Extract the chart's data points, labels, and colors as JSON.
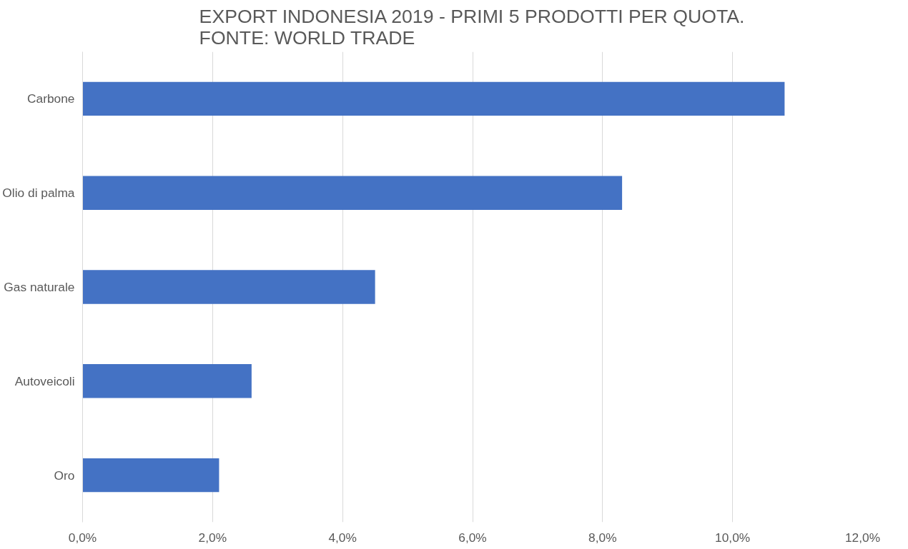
{
  "chart_data": {
    "type": "bar",
    "orientation": "horizontal",
    "title": "EXPORT INDONESIA 2019 - PRIMI 5 PRODOTTI PER QUOTA.\nFONTE: WORLD TRADE",
    "categories": [
      "Carbone",
      "Olio di palma",
      "Gas naturale",
      "Autoveicoli",
      "Oro"
    ],
    "values": [
      10.8,
      8.3,
      4.5,
      2.6,
      2.1
    ],
    "color": "#4472c4",
    "xlim": [
      0,
      12
    ],
    "xticks": [
      {
        "value": 0,
        "label": "0,0%"
      },
      {
        "value": 2,
        "label": "2,0%"
      },
      {
        "value": 4,
        "label": "4,0%"
      },
      {
        "value": 6,
        "label": "6,0%"
      },
      {
        "value": 8,
        "label": "8,0%"
      },
      {
        "value": 10,
        "label": "10,0%"
      },
      {
        "value": 12,
        "label": "12,0%"
      }
    ],
    "grid": "x"
  }
}
